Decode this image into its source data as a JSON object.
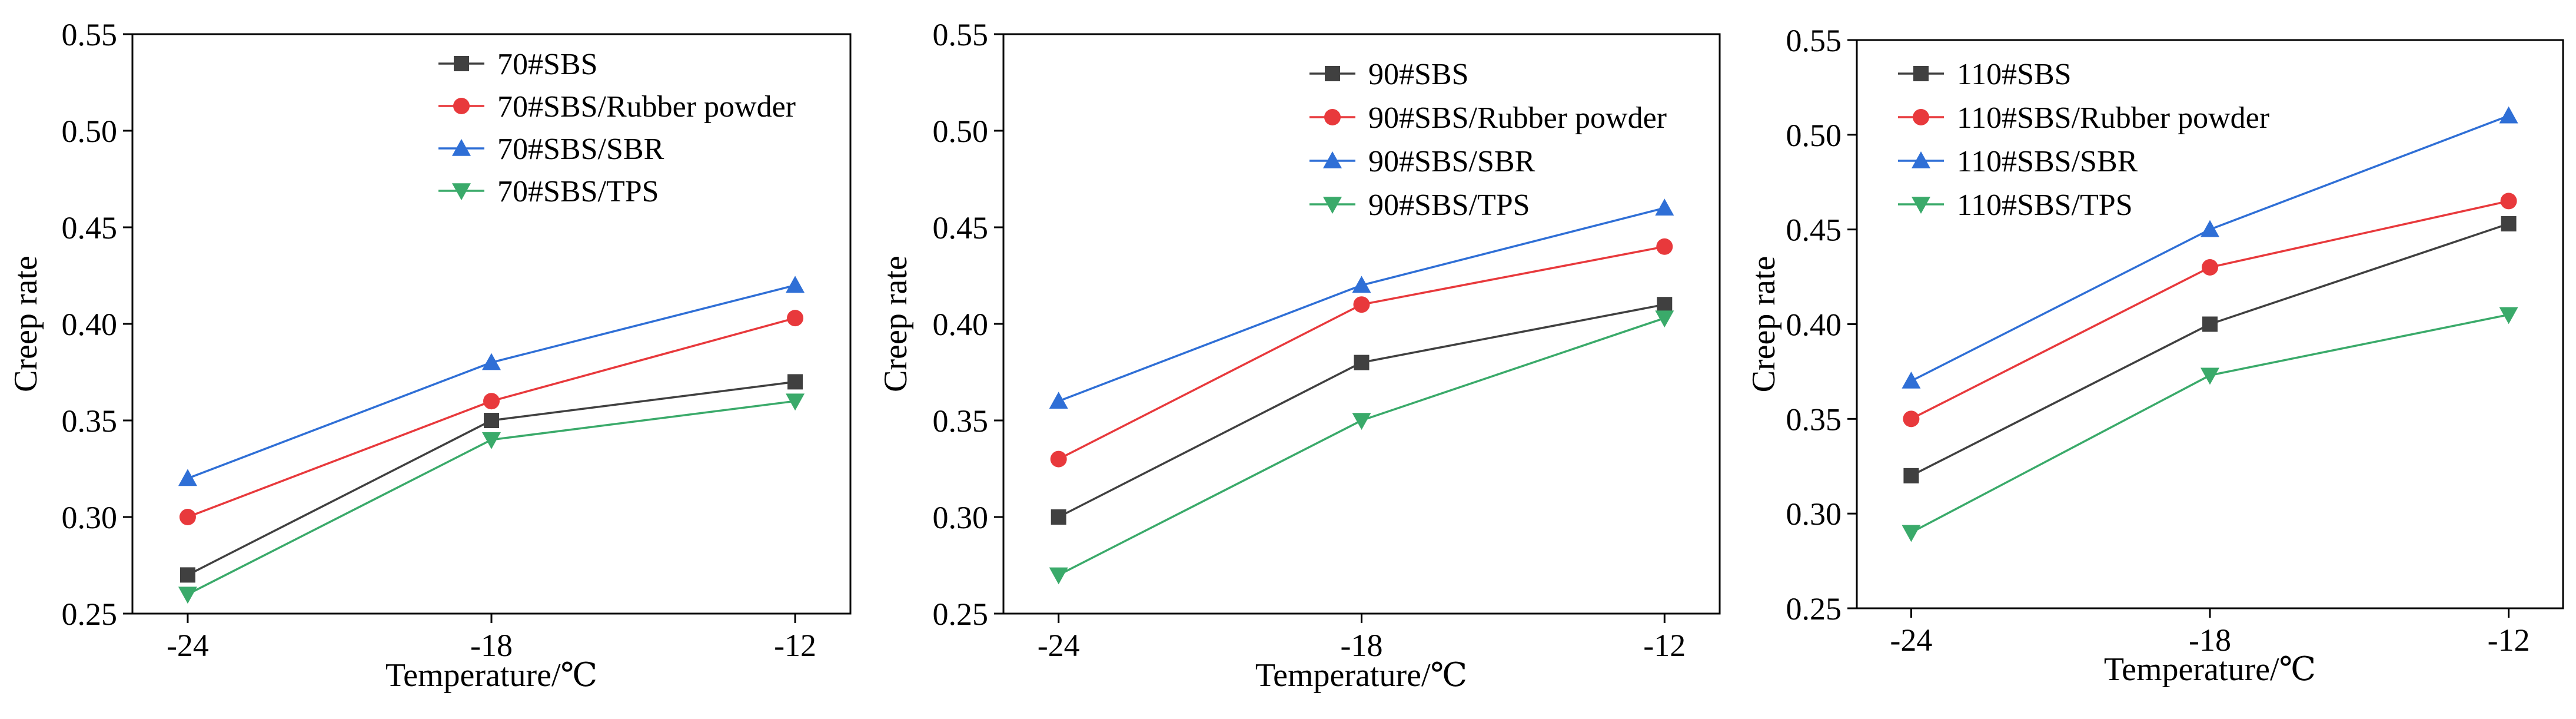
{
  "colors": {
    "sbs": "#404040",
    "rubber": "#e8393c",
    "sbr": "#2f6fd6",
    "tps": "#3aaa6a",
    "axis": "#000000"
  },
  "chart_data": [
    {
      "type": "line",
      "xlabel": "Temperature/℃",
      "ylabel": "Creep rate",
      "ylim": [
        0.25,
        0.55
      ],
      "yticks": [
        "0.25",
        "0.30",
        "0.35",
        "0.40",
        "0.45",
        "0.50",
        "0.55"
      ],
      "categories": [
        "-24",
        "-18",
        "-12"
      ],
      "legend_position": "top-center",
      "series": [
        {
          "name": "70#SBS",
          "marker": "square",
          "color_key": "sbs",
          "values": [
            0.27,
            0.35,
            0.37
          ]
        },
        {
          "name": "70#SBS/Rubber powder",
          "marker": "circle",
          "color_key": "rubber",
          "values": [
            0.3,
            0.36,
            0.403
          ]
        },
        {
          "name": "70#SBS/SBR",
          "marker": "triangle-up",
          "color_key": "sbr",
          "values": [
            0.32,
            0.38,
            0.42
          ]
        },
        {
          "name": "70#SBS/TPS",
          "marker": "triangle-down",
          "color_key": "tps",
          "values": [
            0.26,
            0.34,
            0.36
          ]
        }
      ]
    },
    {
      "type": "line",
      "xlabel": "Temperature/℃",
      "ylabel": "Creep rate",
      "ylim": [
        0.25,
        0.55
      ],
      "yticks": [
        "0.25",
        "0.30",
        "0.35",
        "0.40",
        "0.45",
        "0.50",
        "0.55"
      ],
      "categories": [
        "-24",
        "-18",
        "-12"
      ],
      "legend_position": "top-center",
      "series": [
        {
          "name": "90#SBS",
          "marker": "square",
          "color_key": "sbs",
          "values": [
            0.3,
            0.38,
            0.41
          ]
        },
        {
          "name": "90#SBS/Rubber powder",
          "marker": "circle",
          "color_key": "rubber",
          "values": [
            0.33,
            0.41,
            0.44
          ]
        },
        {
          "name": "90#SBS/SBR",
          "marker": "triangle-up",
          "color_key": "sbr",
          "values": [
            0.36,
            0.42,
            0.46
          ]
        },
        {
          "name": "90#SBS/TPS",
          "marker": "triangle-down",
          "color_key": "tps",
          "values": [
            0.27,
            0.35,
            0.403
          ]
        }
      ]
    },
    {
      "type": "line",
      "xlabel": "Temperature/℃",
      "ylabel": "Creep rate",
      "ylim": [
        0.25,
        0.55
      ],
      "yticks": [
        "0.25",
        "0.30",
        "0.35",
        "0.40",
        "0.45",
        "0.50",
        "0.55"
      ],
      "categories": [
        "-24",
        "-18",
        "-12"
      ],
      "legend_position": "top-left",
      "series": [
        {
          "name": "110#SBS",
          "marker": "square",
          "color_key": "sbs",
          "values": [
            0.32,
            0.4,
            0.453
          ]
        },
        {
          "name": "110#SBS/Rubber powder",
          "marker": "circle",
          "color_key": "rubber",
          "values": [
            0.35,
            0.43,
            0.465
          ]
        },
        {
          "name": "110#SBS/SBR",
          "marker": "triangle-up",
          "color_key": "sbr",
          "values": [
            0.37,
            0.45,
            0.51
          ]
        },
        {
          "name": "110#SBS/TPS",
          "marker": "triangle-down",
          "color_key": "tps",
          "values": [
            0.29,
            0.373,
            0.405
          ]
        }
      ]
    }
  ]
}
